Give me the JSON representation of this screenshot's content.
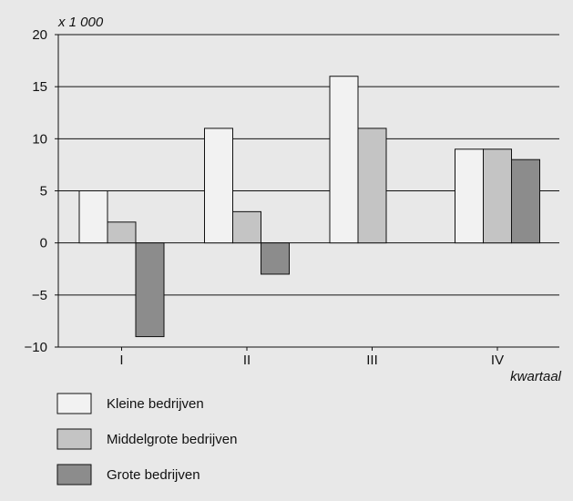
{
  "chart_data": {
    "type": "bar",
    "unit_label": "x 1 000",
    "xlabel": "kwartaal",
    "ylabel": "",
    "ylim": [
      -10,
      20
    ],
    "yticks": [
      20,
      15,
      10,
      5,
      0,
      -5,
      -10
    ],
    "ytick_labels": [
      "20",
      "15",
      "10",
      "5",
      "0",
      "−5",
      "−10"
    ],
    "categories": [
      "I",
      "II",
      "III",
      "IV"
    ],
    "grid": "horizontal",
    "legend_position": "bottom",
    "series": [
      {
        "name": "Kleine bedrijven",
        "values": [
          5,
          11,
          16,
          9
        ],
        "color": "#f2f2f2"
      },
      {
        "name": "Middelgrote bedrijven",
        "values": [
          2,
          3,
          11,
          9
        ],
        "color": "#c4c4c4"
      },
      {
        "name": "Grote bedrijven",
        "values": [
          -9,
          -3,
          null,
          8
        ],
        "color": "#8c8c8c"
      }
    ]
  }
}
